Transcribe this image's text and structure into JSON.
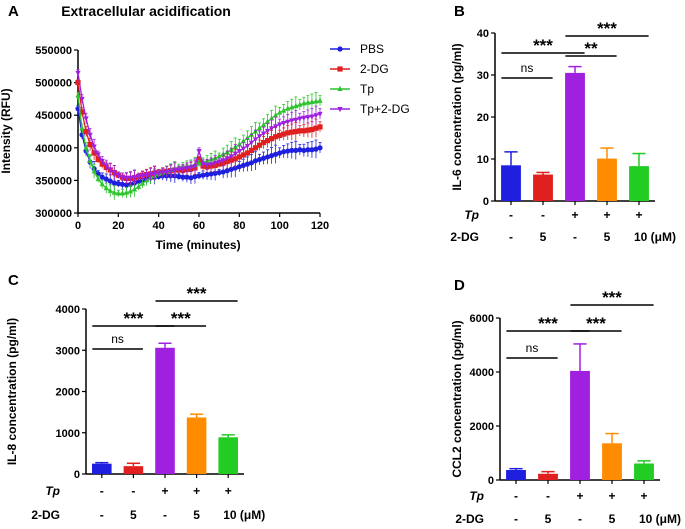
{
  "chart_data": [
    {
      "panel": "A",
      "type": "line",
      "title": "Extracellular acidification",
      "xlabel": "Time (minutes)",
      "ylabel": "Intensity (RFU)",
      "xlim": [
        0,
        120
      ],
      "ylim": [
        300000,
        550000
      ],
      "xticks": [
        0,
        20,
        40,
        60,
        80,
        100,
        120
      ],
      "yticks": [
        300000,
        350000,
        400000,
        450000,
        500000,
        550000
      ],
      "ytick_labels": [
        "300000",
        "350000",
        "400000",
        "450000",
        "500000",
        "550000"
      ],
      "legend_position": "top-right",
      "x": [
        0,
        2,
        4,
        6,
        8,
        10,
        12,
        14,
        16,
        18,
        20,
        22,
        24,
        26,
        28,
        30,
        32,
        34,
        36,
        38,
        40,
        42,
        44,
        46,
        48,
        50,
        52,
        54,
        56,
        58,
        60,
        62,
        64,
        66,
        68,
        70,
        72,
        74,
        76,
        78,
        80,
        82,
        84,
        86,
        88,
        90,
        92,
        94,
        96,
        98,
        100,
        102,
        104,
        106,
        108,
        110,
        112,
        114,
        116,
        118,
        120
      ],
      "series": [
        {
          "name": "PBS",
          "color": "#1f1fe0",
          "marker": "circle",
          "values": [
            460000,
            420000,
            395000,
            378000,
            368000,
            360000,
            355000,
            352000,
            349000,
            346000,
            345000,
            344000,
            343000,
            344000,
            346000,
            348000,
            350000,
            352000,
            354000,
            355000,
            356000,
            357000,
            357000,
            357000,
            357000,
            356000,
            355000,
            355000,
            354000,
            356000,
            357000,
            358000,
            359000,
            360000,
            361000,
            362000,
            363000,
            365000,
            367000,
            369000,
            371000,
            373000,
            375000,
            377000,
            380000,
            382000,
            384000,
            386000,
            388000,
            390000,
            392000,
            394000,
            395000,
            396000,
            396000,
            397000,
            396000,
            397000,
            397000,
            398000,
            400000
          ]
        },
        {
          "name": "2-DG",
          "color": "#e01f1f",
          "marker": "square",
          "values": [
            500000,
            455000,
            425000,
            405000,
            392000,
            382000,
            375000,
            370000,
            366000,
            362000,
            358000,
            355000,
            353000,
            353000,
            354000,
            356000,
            358000,
            359000,
            360000,
            361000,
            362000,
            363000,
            364000,
            365000,
            366000,
            366000,
            366000,
            367000,
            368000,
            369000,
            382000,
            372000,
            371000,
            372000,
            373000,
            375000,
            377000,
            379000,
            381000,
            383000,
            386000,
            389000,
            392000,
            396000,
            400000,
            404000,
            408000,
            411000,
            414000,
            417000,
            419000,
            421000,
            423000,
            424000,
            425000,
            426000,
            426000,
            427000,
            428000,
            430000,
            432000
          ]
        },
        {
          "name": "Tp",
          "color": "#2ec42e",
          "marker": "triangle",
          "values": [
            480000,
            430000,
            400000,
            380000,
            364000,
            352000,
            344000,
            338000,
            334000,
            331000,
            330000,
            330000,
            331000,
            333000,
            336000,
            340000,
            345000,
            350000,
            354000,
            357000,
            360000,
            362000,
            364000,
            366000,
            368000,
            370000,
            371000,
            372000,
            372000,
            374000,
            376000,
            378000,
            380000,
            382000,
            384000,
            387000,
            390000,
            393000,
            397000,
            401000,
            405000,
            410000,
            415000,
            420000,
            425000,
            430000,
            435000,
            440000,
            445000,
            450000,
            454000,
            457000,
            460000,
            462000,
            464000,
            466000,
            468000,
            469000,
            470000,
            471000,
            472000
          ]
        },
        {
          "name": "Tp+2-DG",
          "color": "#a020e0",
          "marker": "triangle-down",
          "values": [
            515000,
            475000,
            445000,
            420000,
            402000,
            390000,
            380000,
            373000,
            367000,
            362000,
            358000,
            355000,
            354000,
            354000,
            355000,
            356000,
            357000,
            358000,
            359000,
            360000,
            361000,
            362000,
            363000,
            364000,
            366000,
            367000,
            368000,
            369000,
            370000,
            372000,
            395000,
            375000,
            374000,
            375000,
            377000,
            379000,
            381000,
            384000,
            387000,
            391000,
            395000,
            399000,
            403000,
            408000,
            413000,
            418000,
            422000,
            426000,
            430000,
            433000,
            436000,
            438000,
            440000,
            442000,
            443000,
            445000,
            446000,
            447000,
            448000,
            450000,
            452000
          ]
        }
      ]
    },
    {
      "panel": "B",
      "type": "bar",
      "ylabel": "IL-6 concentration (pg/ml)",
      "ylim": [
        0,
        40
      ],
      "yticks": [
        0,
        10,
        20,
        30,
        40
      ],
      "ytick_labels": [
        "0",
        "10",
        "20",
        "30",
        "40"
      ],
      "values": [
        8.5,
        6.3,
        30.5,
        10.1,
        8.3
      ],
      "errors": [
        3.2,
        0.5,
        1.5,
        2.5,
        3.0
      ],
      "colors": [
        "#1f1fe0",
        "#e01f1f",
        "#a020e0",
        "#ff8c00",
        "#22cc22"
      ],
      "row_labels": {
        "tp": "Tp",
        "dg": "2-DG"
      },
      "tp_row": [
        "-",
        "-",
        "+",
        "+",
        "+"
      ],
      "dg_row": [
        "-",
        "5",
        "-",
        "5",
        "10 (μM)"
      ],
      "brackets": [
        {
          "from": 0,
          "to": 1,
          "label": "ns"
        },
        {
          "from": 0,
          "to": 2,
          "label": "***"
        },
        {
          "from": 2,
          "to": 3,
          "label": "**"
        },
        {
          "from": 2,
          "to": 4,
          "label": "***"
        }
      ]
    },
    {
      "panel": "C",
      "type": "bar",
      "ylabel": "IL-8 concentration (pg/ml)",
      "ylim": [
        0,
        4000
      ],
      "yticks": [
        0,
        1000,
        2000,
        3000,
        4000
      ],
      "ytick_labels": [
        "0",
        "1000",
        "2000",
        "3000",
        "4000"
      ],
      "values": [
        250,
        190,
        3060,
        1370,
        890
      ],
      "errors": [
        25,
        70,
        110,
        80,
        60
      ],
      "colors": [
        "#1f1fe0",
        "#e01f1f",
        "#a020e0",
        "#ff8c00",
        "#22cc22"
      ],
      "row_labels": {
        "tp": "Tp",
        "dg": "2-DG"
      },
      "tp_row": [
        "-",
        "-",
        "+",
        "+",
        "+"
      ],
      "dg_row": [
        "-",
        "5",
        "-",
        "5",
        "10 (μM)"
      ],
      "brackets": [
        {
          "from": 0,
          "to": 1,
          "label": "ns"
        },
        {
          "from": 0,
          "to": 2,
          "label": "***"
        },
        {
          "from": 2,
          "to": 3,
          "label": "***"
        },
        {
          "from": 2,
          "to": 4,
          "label": "***"
        }
      ]
    },
    {
      "panel": "D",
      "type": "bar",
      "ylabel": "CCL2 concentration (pg/ml)",
      "ylim": [
        0,
        6000
      ],
      "yticks": [
        0,
        2000,
        4000,
        6000
      ],
      "ytick_labels": [
        "0",
        "2000",
        "4000",
        "6000"
      ],
      "values": [
        370,
        230,
        4040,
        1360,
        610
      ],
      "errors": [
        50,
        80,
        1000,
        360,
        100
      ],
      "colors": [
        "#1f1fe0",
        "#e01f1f",
        "#a020e0",
        "#ff8c00",
        "#22cc22"
      ],
      "row_labels": {
        "tp": "Tp",
        "dg": "2-DG"
      },
      "tp_row": [
        "-",
        "-",
        "+",
        "+",
        "+"
      ],
      "dg_row": [
        "-",
        "5",
        "-",
        "5",
        "10 (μM)"
      ],
      "brackets": [
        {
          "from": 0,
          "to": 1,
          "label": "ns"
        },
        {
          "from": 0,
          "to": 2,
          "label": "***"
        },
        {
          "from": 2,
          "to": 3,
          "label": "***"
        },
        {
          "from": 2,
          "to": 4,
          "label": "***"
        }
      ]
    }
  ]
}
